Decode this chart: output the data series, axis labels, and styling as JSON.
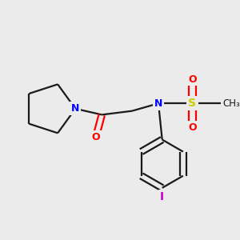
{
  "bg_color": "#ebebeb",
  "bond_color": "#1a1a1a",
  "N_color": "#0000ff",
  "O_color": "#ff0000",
  "S_color": "#cccc00",
  "I_color": "#cc00cc",
  "line_width": 1.6,
  "figsize": [
    3.0,
    3.0
  ],
  "dpi": 100,
  "xlim": [
    0,
    300
  ],
  "ylim": [
    0,
    300
  ]
}
